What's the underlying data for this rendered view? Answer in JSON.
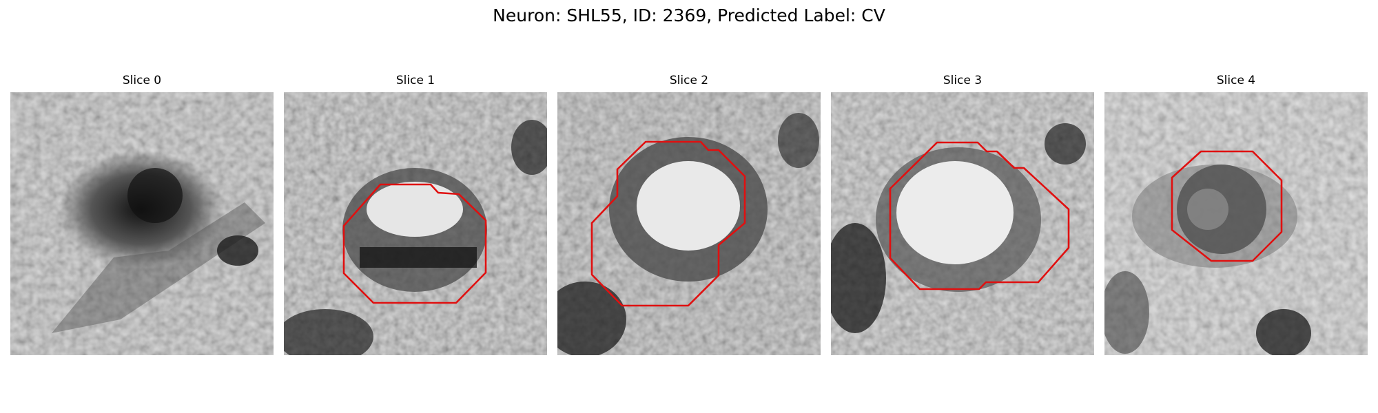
{
  "figure": {
    "title": "Neuron: SHL55, ID: 2369, Predicted Label: CV",
    "outline_color": "#e01010"
  },
  "panels": [
    {
      "label": "Slice 0"
    },
    {
      "label": "Slice 1"
    },
    {
      "label": "Slice 2"
    },
    {
      "label": "Slice 3"
    },
    {
      "label": "Slice 4"
    }
  ]
}
